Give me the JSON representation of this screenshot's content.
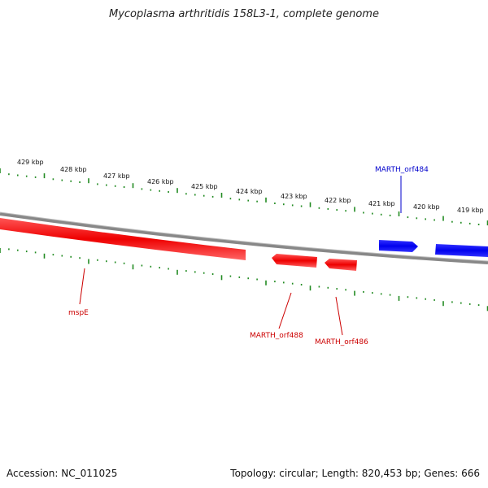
{
  "title": "Mycoplasma arthritidis 158L3-1, complete genome",
  "footer": {
    "accession": "Accession: NC_011025",
    "summary": "Topology: circular; Length: 820,453 bp; Genes: 666"
  },
  "ruler_labels": [
    "429 kbp",
    "428 kbp",
    "427 kbp",
    "426 kbp",
    "425 kbp",
    "424 kbp",
    "423 kbp",
    "422 kbp",
    "421 kbp",
    "420 kbp",
    "419 kbp"
  ],
  "genes": [
    {
      "label": "MARTH_orf484",
      "strand": "+",
      "color": "#0000cc"
    },
    {
      "label": "mspE",
      "strand": "-",
      "color": "#cc0000"
    },
    {
      "label": "MARTH_orf488",
      "strand": "-",
      "color": "#cc0000"
    },
    {
      "label": "MARTH_orf486",
      "strand": "-",
      "color": "#cc0000"
    }
  ],
  "colors": {
    "plus_strand": "#0000ee",
    "minus_strand": "#ee0000",
    "backbone": "#888888",
    "ticks": "#228b22"
  }
}
